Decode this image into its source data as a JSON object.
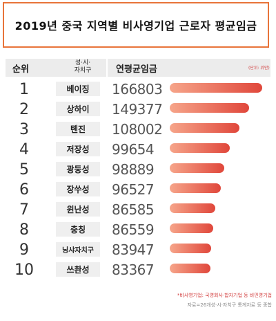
{
  "title": "2019년 중국 지역별 비사영기업 근로자 평균임금",
  "header": {
    "rank": "순위",
    "region": "성·시·\n자치구",
    "wage": "연평균임금",
    "unit": "(단위: 위안)"
  },
  "chart_data": {
    "type": "bar",
    "title": "2019년 중국 지역별 비사영기업 근로자 평균임금",
    "ranks": [
      "1",
      "2",
      "3",
      "4",
      "5",
      "6",
      "7",
      "8",
      "9",
      "10"
    ],
    "categories": [
      "베이징",
      "상하이",
      "톈진",
      "저장성",
      "광둥성",
      "장쑤성",
      "윈난성",
      "충칭",
      "닝샤자치구",
      "쓰촨성"
    ],
    "values": [
      166803,
      149377,
      108002,
      99654,
      98889,
      96527,
      86585,
      86559,
      83947,
      83367
    ],
    "bar_fraction": [
      1.0,
      0.86,
      0.75,
      0.65,
      0.59,
      0.55,
      0.49,
      0.47,
      0.45,
      0.44
    ],
    "colors": {
      "bar_start": "#f6a58a",
      "bar_end": "#e0473b",
      "accent": "#e8743a"
    }
  },
  "notes": {
    "note1": "*비사영기업: 국영회사·합자기업 등 비민영기업",
    "note2": "자료=26개성·시·자치구 통계자료 등 종합"
  }
}
